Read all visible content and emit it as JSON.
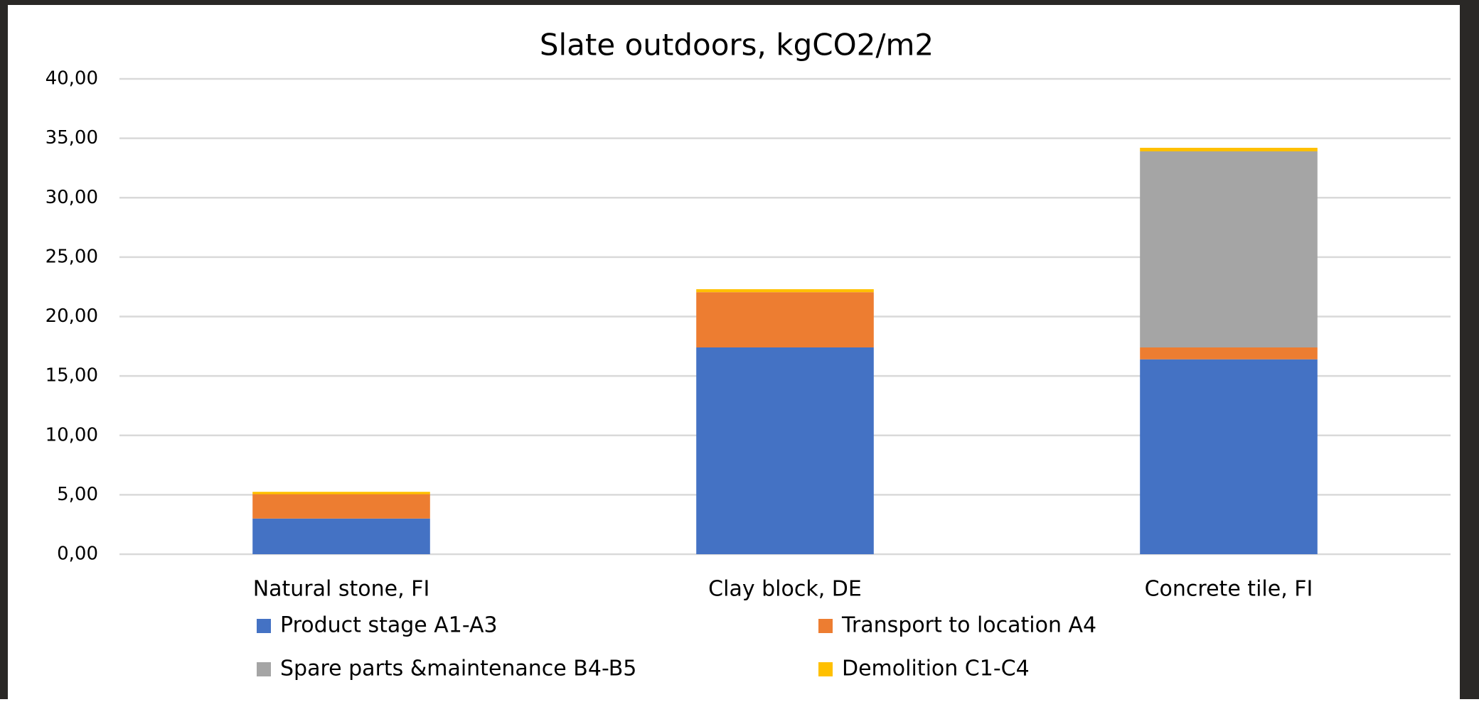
{
  "chart_data": {
    "type": "stacked_bar",
    "title": "Slate outdoors, kgCO2/m2",
    "categories": [
      "Natural stone, FI",
      "Clay block, DE",
      "Concrete tile, FI"
    ],
    "series": [
      {
        "name": "Product stage A1-A3",
        "color": "#4472c4",
        "values": [
          3.0,
          17.4,
          16.4
        ]
      },
      {
        "name": "Transport to location A4",
        "color": "#ed7d31",
        "values": [
          2.05,
          4.65,
          1.0
        ]
      },
      {
        "name": "Spare parts &maintenance B4-B5",
        "color": "#a5a5a5",
        "values": [
          0,
          0,
          16.5
        ]
      },
      {
        "name": "Demolition C1-C4",
        "color": "#ffc000",
        "values": [
          0.2,
          0.25,
          0.3
        ]
      }
    ],
    "ylim": [
      0,
      40
    ],
    "yticks": [
      {
        "value": 0,
        "label": "0,00"
      },
      {
        "value": 5,
        "label": "5,00"
      },
      {
        "value": 10,
        "label": "10,00"
      },
      {
        "value": 15,
        "label": "15,00"
      },
      {
        "value": 20,
        "label": "20,00"
      },
      {
        "value": 25,
        "label": "25,00"
      },
      {
        "value": 30,
        "label": "30,00"
      },
      {
        "value": 35,
        "label": "35,00"
      },
      {
        "value": 40,
        "label": "40,00"
      }
    ],
    "grid": true,
    "legend": "bottom"
  }
}
